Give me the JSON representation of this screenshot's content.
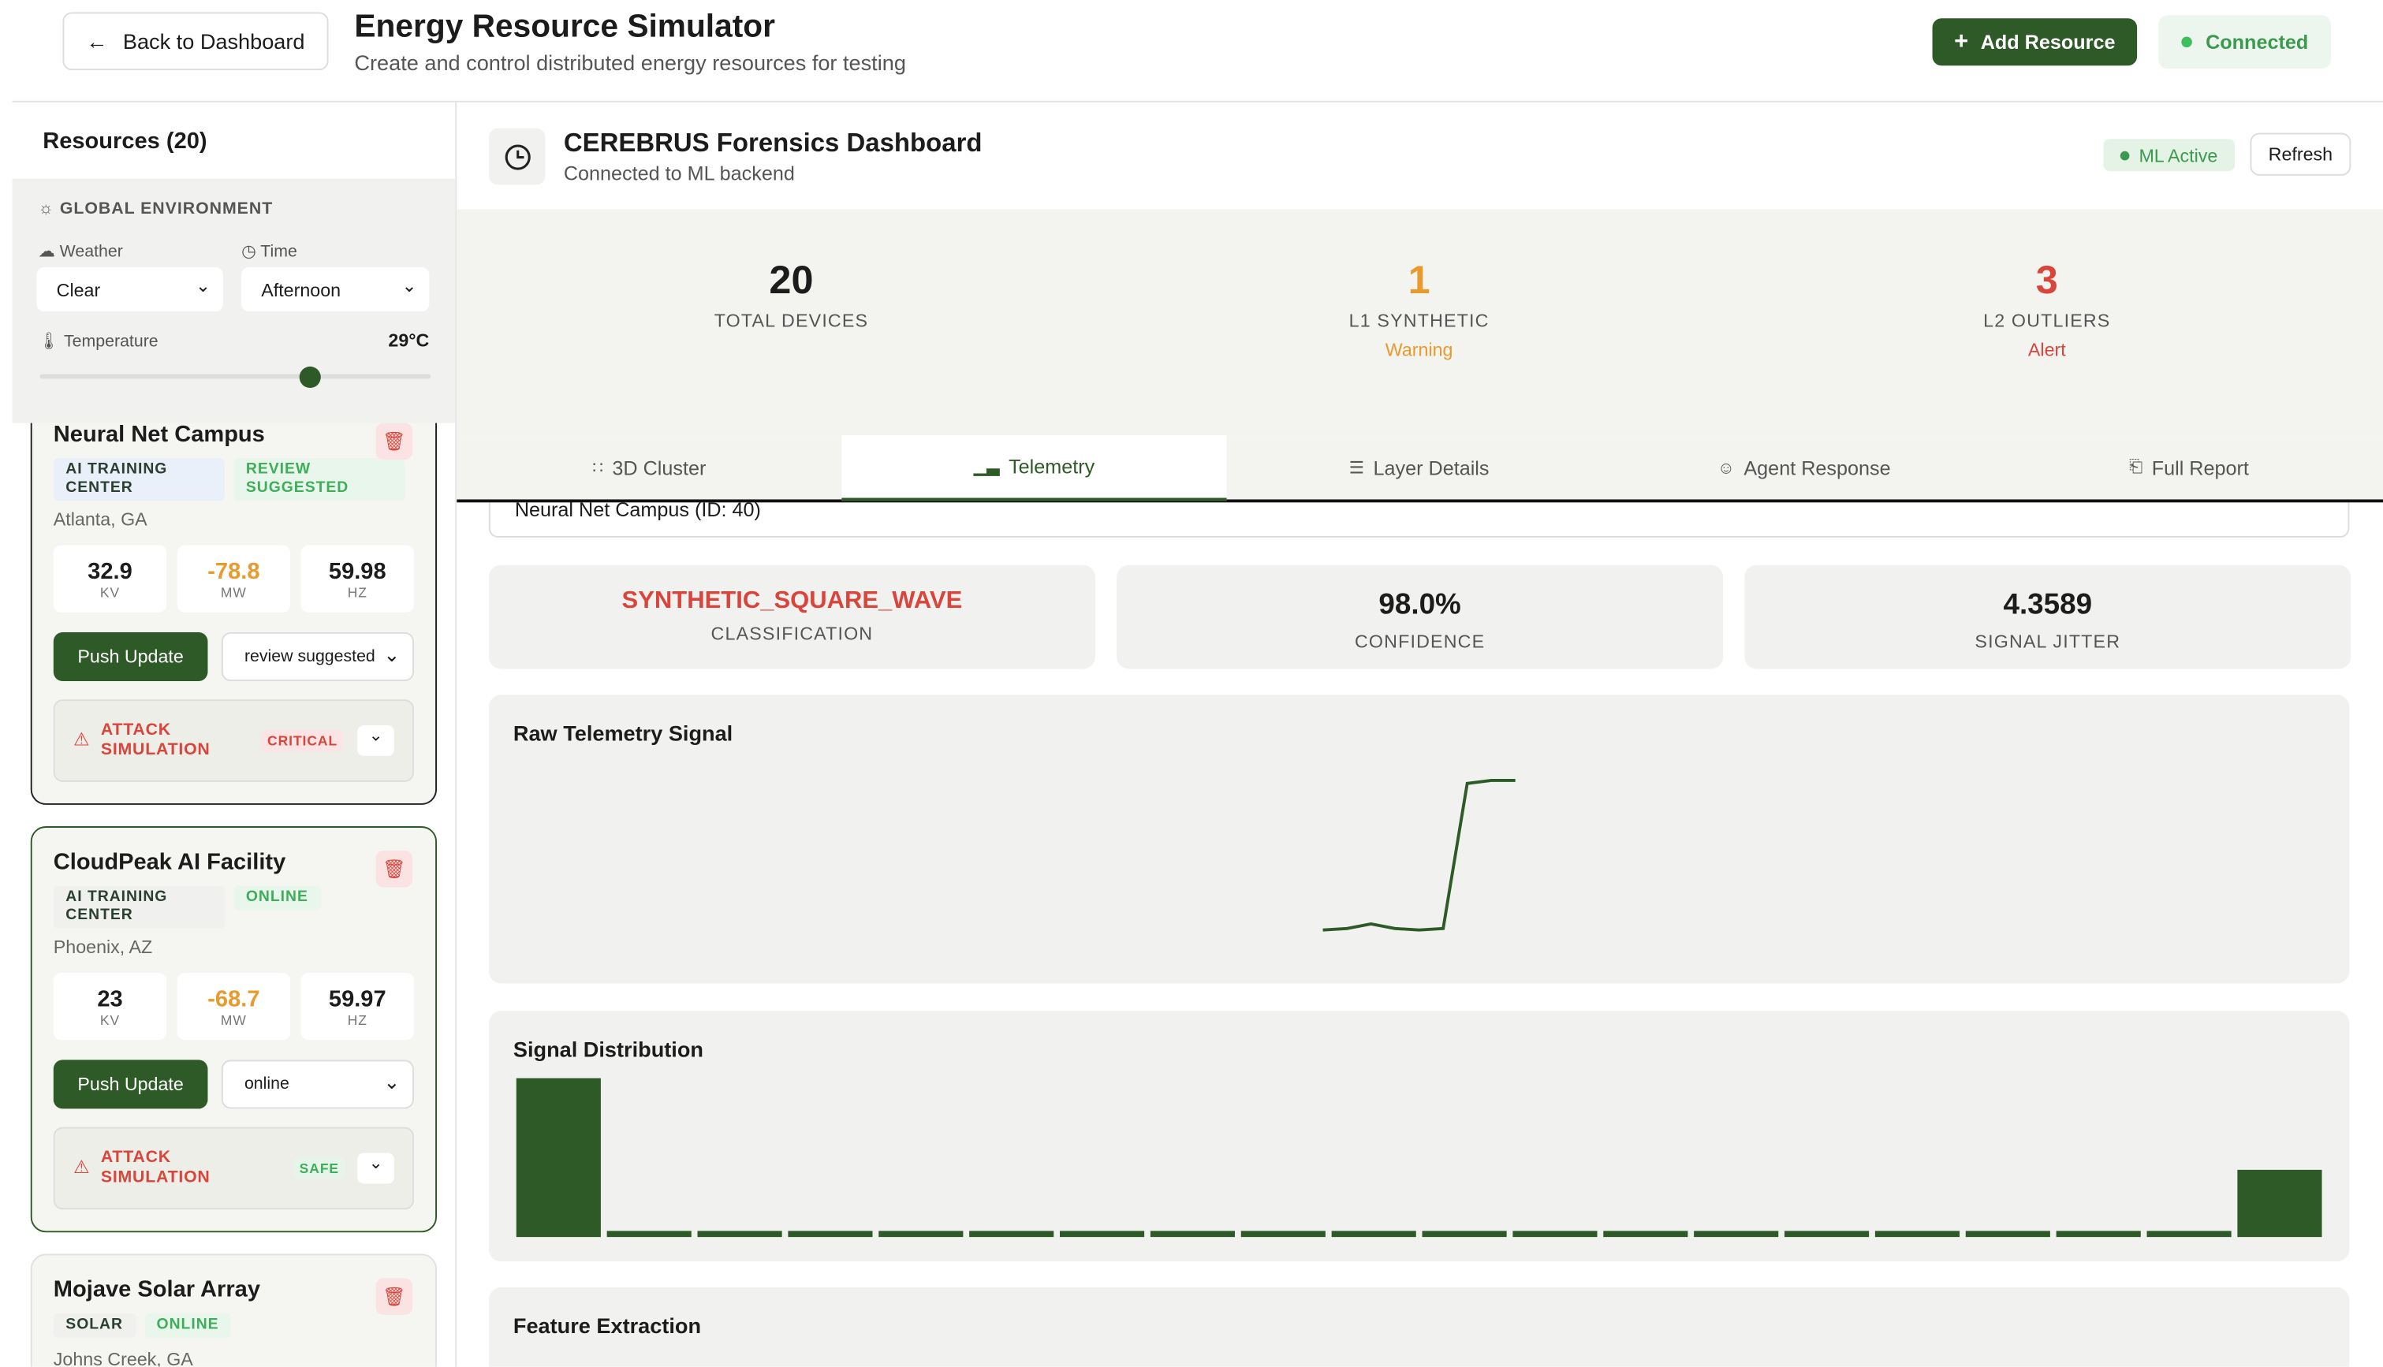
{
  "header": {
    "back_button": "Back to Dashboard",
    "title": "Energy Resource Simulator",
    "subtitle": "Create and control distributed energy resources for testing",
    "add_button": "Add Resource",
    "status": "Connected"
  },
  "sidebar": {
    "heading": "Resources (20)",
    "environment": {
      "title": "GLOBAL ENVIRONMENT",
      "weather_label": "Weather",
      "weather_value": "Clear",
      "time_label": "Time",
      "time_value": "Afternoon",
      "temperature_label": "Temperature",
      "temperature_value": "29°C"
    },
    "resources": [
      {
        "name": "Neural Net Campus",
        "tags": [
          "AI TRAINING CENTER",
          "REVIEW SUGGESTED"
        ],
        "location": "Atlanta, GA",
        "metrics": [
          {
            "value": "32.9",
            "unit": "KV"
          },
          {
            "value": "-78.8",
            "unit": "MW"
          },
          {
            "value": "59.98",
            "unit": "HZ"
          }
        ],
        "button": "Push Update",
        "select": "review suggested",
        "attack_label": "ATTACK SIMULATION",
        "attack_status": "CRITICAL"
      },
      {
        "name": "CloudPeak AI Facility",
        "tags": [
          "AI TRAINING CENTER",
          "ONLINE"
        ],
        "location": "Phoenix, AZ",
        "metrics": [
          {
            "value": "23",
            "unit": "KV"
          },
          {
            "value": "-68.7",
            "unit": "MW"
          },
          {
            "value": "59.97",
            "unit": "HZ"
          }
        ],
        "button": "Push Update",
        "select": "online",
        "attack_label": "ATTACK SIMULATION",
        "attack_status": "SAFE"
      },
      {
        "name": "Mojave Solar Array",
        "tags": [
          "SOLAR",
          "ONLINE"
        ],
        "location": "Johns Creek, GA"
      }
    ]
  },
  "dashboard": {
    "title": "CEREBRUS Forensics Dashboard",
    "subtitle": "Connected to ML backend",
    "ml_status": "ML Active",
    "refresh": "Refresh",
    "stats": [
      {
        "value": "20",
        "label": "TOTAL DEVICES"
      },
      {
        "value": "1",
        "label": "L1 SYNTHETIC",
        "note": "Warning"
      },
      {
        "value": "3",
        "label": "L2 OUTLIERS",
        "note": "Alert"
      }
    ],
    "tabs": [
      "3D Cluster",
      "Telemetry",
      "Layer Details",
      "Agent Response",
      "Full Report"
    ],
    "device_select": "Neural Net Campus (ID: 40)",
    "metrics": [
      {
        "value": "SYNTHETIC_SQUARE_WAVE",
        "label": "CLASSIFICATION"
      },
      {
        "value": "98.0%",
        "label": "CONFIDENCE"
      },
      {
        "value": "4.3589",
        "label": "SIGNAL JITTER"
      }
    ],
    "telemetry": {
      "title": "Raw Telemetry Signal",
      "values": [
        0.02,
        0.03,
        0.06,
        0.03,
        0.02,
        0.03,
        0.98,
        1.0,
        1.0
      ]
    },
    "distribution": {
      "title": "Signal Distribution",
      "counts": [
        26,
        1,
        1,
        1,
        1,
        1,
        1,
        1,
        1,
        1,
        1,
        1,
        1,
        1,
        1,
        1,
        1,
        1,
        1,
        11
      ]
    },
    "feature_extraction": {
      "title": "Feature Extraction"
    }
  }
}
